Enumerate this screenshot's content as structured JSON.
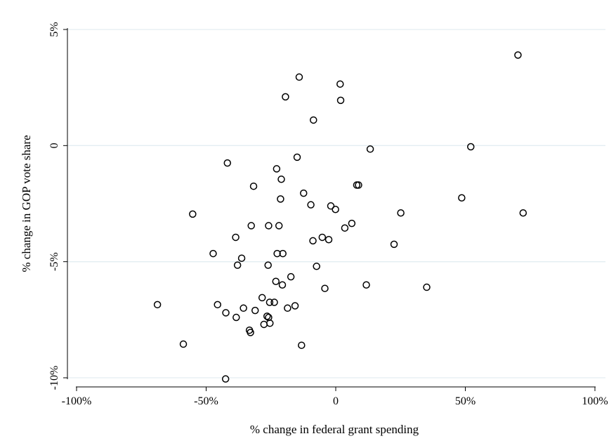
{
  "chart_data": {
    "type": "scatter",
    "title": "",
    "xlabel": "% change in federal grant spending",
    "ylabel": "% change in GOP vote share",
    "xlim": [
      -100,
      100
    ],
    "ylim": [
      -10,
      5
    ],
    "grid": true,
    "x_ticks": [
      {
        "value": -100,
        "label": "-100%"
      },
      {
        "value": -50,
        "label": "-50%"
      },
      {
        "value": 0,
        "label": "0"
      },
      {
        "value": 50,
        "label": "50%"
      },
      {
        "value": 100,
        "label": "100%"
      }
    ],
    "y_ticks": [
      {
        "value": 5,
        "label": "5%"
      },
      {
        "value": 0,
        "label": "0"
      },
      {
        "value": -5,
        "label": "-5%"
      },
      {
        "value": -10,
        "label": "-10%"
      }
    ],
    "points": [
      [
        70.3,
        3.9
      ],
      [
        -14.1,
        2.95
      ],
      [
        1.7,
        2.65
      ],
      [
        -19.4,
        2.1
      ],
      [
        1.9,
        1.95
      ],
      [
        -8.6,
        1.1
      ],
      [
        52.1,
        -0.05
      ],
      [
        13.3,
        -0.15
      ],
      [
        -14.9,
        -0.5
      ],
      [
        -41.8,
        -0.75
      ],
      [
        -22.8,
        -1.0
      ],
      [
        -21.0,
        -1.45
      ],
      [
        -31.7,
        -1.75
      ],
      [
        8.1,
        -1.7
      ],
      [
        8.8,
        -1.7
      ],
      [
        -12.4,
        -2.05
      ],
      [
        -21.3,
        -2.3
      ],
      [
        48.6,
        -2.25
      ],
      [
        -9.6,
        -2.55
      ],
      [
        -1.9,
        -2.6
      ],
      [
        -0.1,
        -2.75
      ],
      [
        -55.2,
        -2.95
      ],
      [
        25.1,
        -2.9
      ],
      [
        72.3,
        -2.9
      ],
      [
        -32.6,
        -3.45
      ],
      [
        -25.9,
        -3.45
      ],
      [
        -21.9,
        -3.45
      ],
      [
        6.2,
        -3.35
      ],
      [
        3.5,
        -3.55
      ],
      [
        -38.6,
        -3.95
      ],
      [
        -5.2,
        -3.95
      ],
      [
        -2.7,
        -4.05
      ],
      [
        -8.8,
        -4.1
      ],
      [
        22.5,
        -4.25
      ],
      [
        -47.3,
        -4.65
      ],
      [
        -22.6,
        -4.65
      ],
      [
        -20.4,
        -4.65
      ],
      [
        -36.3,
        -4.85
      ],
      [
        -37.9,
        -5.15
      ],
      [
        -26.1,
        -5.15
      ],
      [
        -7.4,
        -5.2
      ],
      [
        -17.3,
        -5.65
      ],
      [
        -23.1,
        -5.85
      ],
      [
        -20.6,
        -6.0
      ],
      [
        11.8,
        -6.0
      ],
      [
        35.1,
        -6.1
      ],
      [
        -4.2,
        -6.15
      ],
      [
        -28.4,
        -6.55
      ],
      [
        -25.5,
        -6.75
      ],
      [
        -23.7,
        -6.75
      ],
      [
        -68.8,
        -6.85
      ],
      [
        -45.6,
        -6.85
      ],
      [
        -15.7,
        -6.9
      ],
      [
        -35.6,
        -7.0
      ],
      [
        -18.6,
        -7.0
      ],
      [
        -31.1,
        -7.1
      ],
      [
        -42.4,
        -7.2
      ],
      [
        -26.5,
        -7.35
      ],
      [
        -38.4,
        -7.4
      ],
      [
        -25.9,
        -7.4
      ],
      [
        -27.7,
        -7.7
      ],
      [
        -25.4,
        -7.65
      ],
      [
        -33.3,
        -7.95
      ],
      [
        -32.9,
        -8.05
      ],
      [
        -58.8,
        -8.55
      ],
      [
        -13.2,
        -8.6
      ],
      [
        -42.5,
        -10.05
      ]
    ]
  }
}
